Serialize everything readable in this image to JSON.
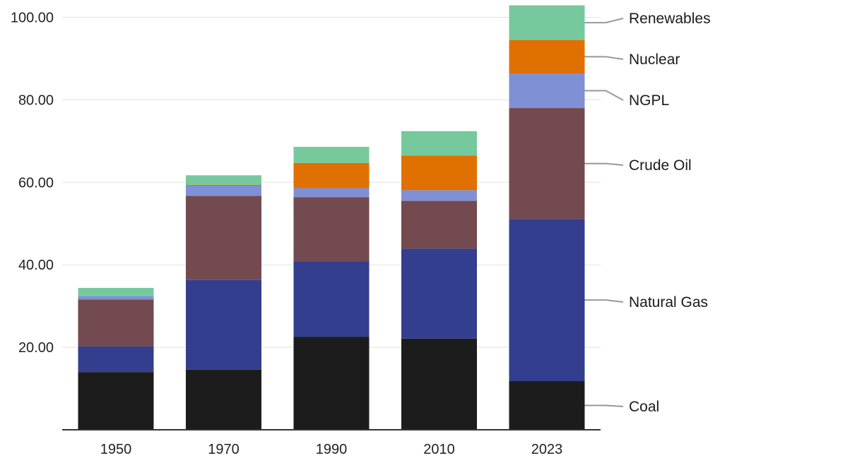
{
  "chart_data": {
    "type": "bar",
    "stacked": true,
    "title": "",
    "xlabel": "",
    "ylabel": "",
    "ylim": [
      0,
      104
    ],
    "y_ticks": [
      "20.00",
      "40.00",
      "60.00",
      "80.00",
      "100.00"
    ],
    "y_tick_values": [
      20,
      40,
      60,
      80,
      100
    ],
    "categories": [
      "1950",
      "1970",
      "1990",
      "2010",
      "2023"
    ],
    "series": [
      {
        "name": "Coal",
        "color": "#1c1c1c",
        "values": [
          14.0,
          14.6,
          22.5,
          22.1,
          11.8
        ]
      },
      {
        "name": "Natural Gas",
        "color": "#333f8e",
        "values": [
          6.2,
          21.7,
          18.3,
          21.8,
          39.3
        ]
      },
      {
        "name": "Crude Oil",
        "color": "#734a4f",
        "values": [
          11.4,
          20.4,
          15.6,
          11.6,
          26.9
        ]
      },
      {
        "name": "NGPL",
        "color": "#8090d4",
        "values": [
          0.8,
          2.5,
          2.2,
          2.6,
          8.4
        ]
      },
      {
        "name": "Nuclear",
        "color": "#e07000",
        "values": [
          0.0,
          0.2,
          6.1,
          8.4,
          8.1
        ]
      },
      {
        "name": "Renewables",
        "color": "#76c99c",
        "values": [
          2.0,
          2.3,
          3.9,
          5.9,
          8.4
        ]
      }
    ],
    "legend": "right, labelled against 2023 bar"
  }
}
